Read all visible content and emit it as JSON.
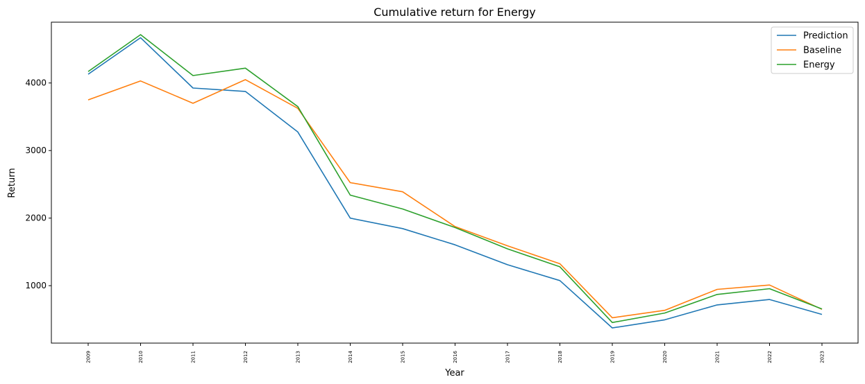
{
  "chart_data": {
    "type": "line",
    "title": "Cumulative return for Energy",
    "xlabel": "Year",
    "ylabel": "Return",
    "categories": [
      "2009",
      "2010",
      "2011",
      "2012",
      "2013",
      "2014",
      "2015",
      "2016",
      "2017",
      "2018",
      "2019",
      "2020",
      "2021",
      "2022",
      "2023"
    ],
    "ylim": [
      150,
      4900
    ],
    "yticks": [
      1000,
      2000,
      3000,
      4000
    ],
    "grid": false,
    "legend_position": "top-right",
    "series": [
      {
        "name": "Prediction",
        "color": "#1f77b4",
        "values": [
          4130,
          4670,
          3925,
          3875,
          3275,
          2000,
          1845,
          1605,
          1310,
          1075,
          375,
          495,
          715,
          795,
          575
        ]
      },
      {
        "name": "Baseline",
        "color": "#ff7f0e",
        "values": [
          3750,
          4030,
          3700,
          4050,
          3625,
          2525,
          2390,
          1875,
          1590,
          1325,
          525,
          635,
          945,
          1010,
          650
        ]
      },
      {
        "name": "Energy",
        "color": "#2ca02c",
        "values": [
          4170,
          4715,
          4110,
          4220,
          3650,
          2340,
          2135,
          1860,
          1545,
          1280,
          455,
          595,
          870,
          955,
          655
        ]
      }
    ]
  }
}
